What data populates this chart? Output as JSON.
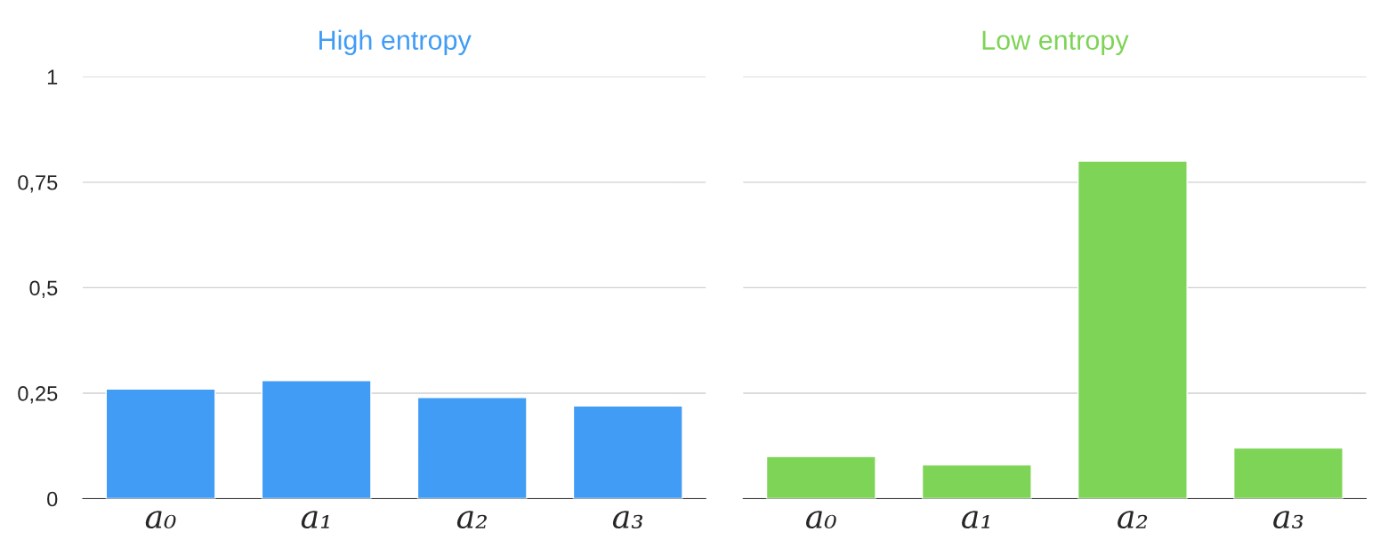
{
  "chart_data": [
    {
      "type": "bar",
      "title": "High entropy",
      "categories": [
        "a₀",
        "a₁",
        "a₂",
        "a₃"
      ],
      "series": [
        {
          "color": "#419cf5",
          "values": [
            0.26,
            0.28,
            0.24,
            0.22
          ]
        }
      ],
      "ylim": [
        0,
        1
      ],
      "yticks": [
        0,
        {
          "value": 0.25,
          "label": "0,25"
        },
        {
          "value": 0.5,
          "label": "0,5"
        },
        {
          "value": 0.75,
          "label": "0,75"
        },
        1
      ],
      "grid": "y"
    },
    {
      "type": "bar",
      "title": "Low entropy",
      "categories": [
        "a₀",
        "a₁",
        "a₂",
        "a₃"
      ],
      "series": [
        {
          "color": "#7ed456",
          "values": [
            0.1,
            0.08,
            0.8,
            0.12
          ]
        }
      ],
      "ylim": [
        0,
        1
      ],
      "yticks": [
        0,
        0.25,
        0.5,
        0.75,
        1
      ],
      "grid": "y",
      "tick_labels": "x"
    }
  ]
}
